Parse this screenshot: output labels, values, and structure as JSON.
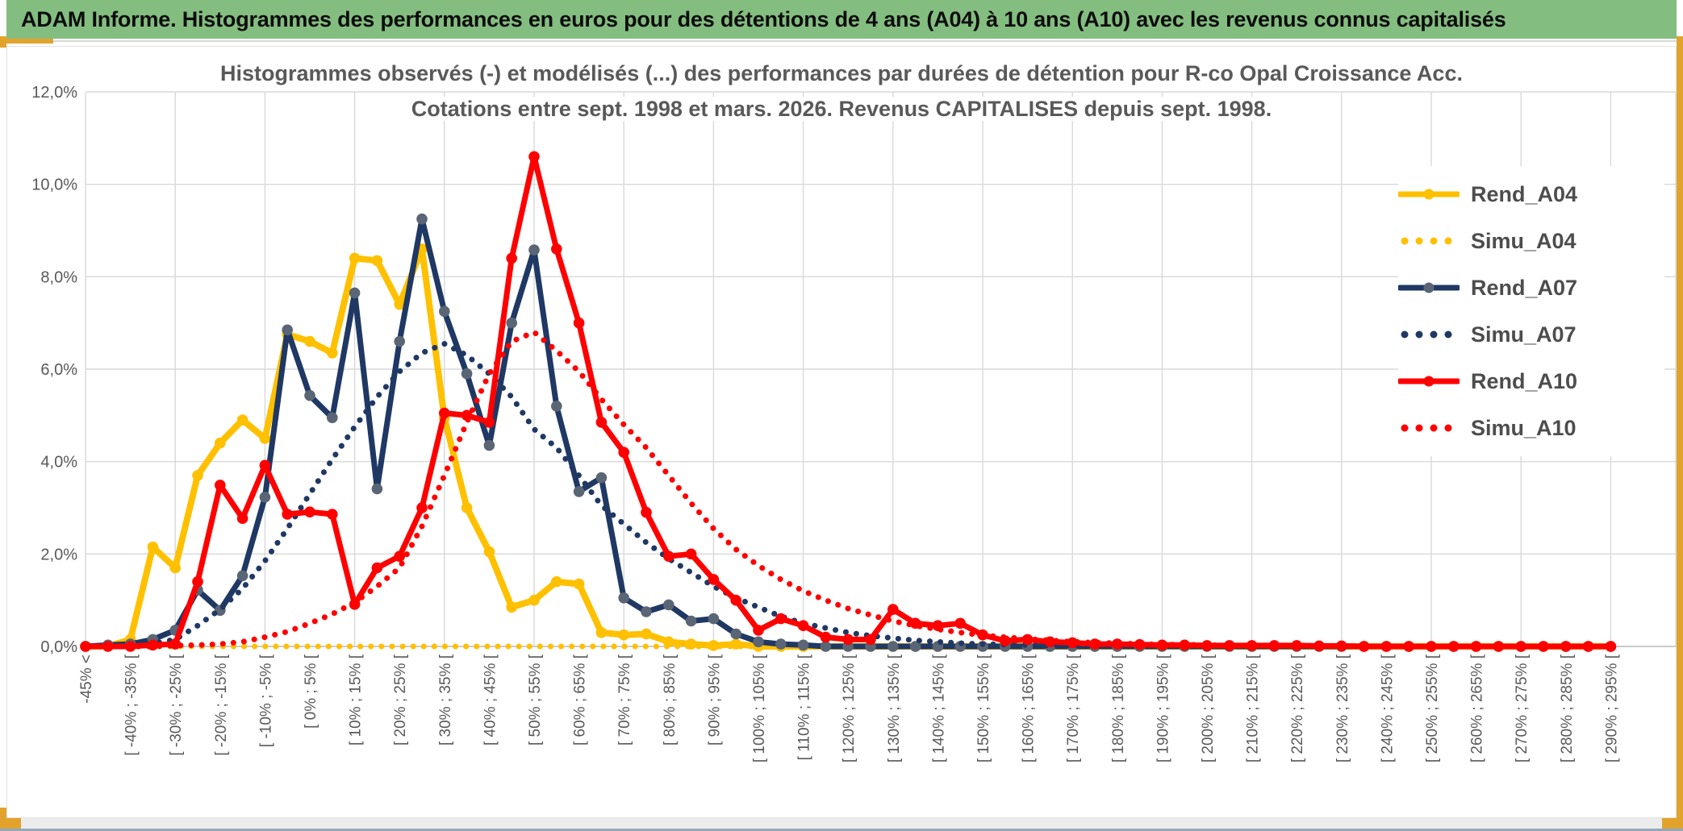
{
  "window": {
    "header_title": "ADAM Informe. Histogrammes des performances en euros pour des détentions de 4 ans (A04) à 10 ans (A10) avec les revenus connus capitalisés",
    "chrome_colors": {
      "header_green": "#84BD80",
      "accent_gold": "#E2A32C",
      "bottom_edge_blue": "#93A9BA"
    }
  },
  "chart_data": {
    "type": "line",
    "title_line1": "Histogrammes observés (-) et modélisés (...) des performances par durées de détention pour R-co Opal Croissance Acc.",
    "title_line2": "Cotations entre sept. 1998 et mars. 2026. Revenus CAPITALISES depuis sept. 1998.",
    "title_color": "#595959",
    "ylim": [
      0,
      12
    ],
    "y_tick_labels": [
      "0,0%",
      "2,0%",
      "4,0%",
      "6,0%",
      "8,0%",
      "10,0%",
      "12,0%"
    ],
    "grid": {
      "visible": true,
      "x_gridline_every_bins": 4,
      "gridline_color": "#D9D9D9"
    },
    "legend_position": "right-overlay",
    "axis_text_color": "#595959",
    "bins": 69,
    "x_labels_every_other_bin": true,
    "x_labels": [
      "-45% <",
      "[ -40% ; -35% [",
      "[ -30% ; -25% [",
      "[ -20% ; -15% [",
      "[ -10% ; -5% [",
      "[ 0% ; 5% [",
      "[ 10% ; 15% [",
      "[ 20% ; 25% [",
      "[ 30% ; 35% [",
      "[ 40% ; 45% [",
      "[ 50% ; 55% [",
      "[ 60% ; 65% [",
      "[ 70% ; 75% [",
      "[ 80% ; 85% [",
      "[ 90% ; 95% [",
      "[ 100% ; 105% [",
      "[ 110% ; 115% [",
      "[ 120% ; 125% [",
      "[ 130% ; 135% [",
      "[ 140% ; 145% [",
      "[ 150% ; 155% [",
      "[ 160% ; 165% [",
      "[ 170% ; 175% [",
      "[ 180% ; 185% [",
      "[ 190% ; 195% [",
      "[ 200% ; 205% [",
      "[ 210% ; 215% [",
      "[ 220% ; 225% [",
      "[ 230% ; 235% [",
      "[ 240% ; 245% [",
      "[ 250% ; 255% [",
      "[ 260% ; 265% [",
      "[ 270% ; 275% [",
      "[ 280% ; 285% [",
      "[ 290% ; 295% ["
    ],
    "series": [
      {
        "name": "Rend_A04",
        "color": "#FFC000",
        "marker_color": "#FFC000",
        "style": "solid",
        "markers": true,
        "width": 8,
        "values": [
          0,
          0,
          0.15,
          2.15,
          1.7,
          3.7,
          4.4,
          4.9,
          4.5,
          6.75,
          6.6,
          6.35,
          8.4,
          8.35,
          7.4,
          8.6,
          4.95,
          3,
          2.05,
          0.85,
          1,
          1.4,
          1.35,
          0.3,
          0.25,
          0.27,
          0.1,
          0.05,
          0.02,
          0.05,
          0,
          0,
          0,
          0,
          0,
          0,
          0,
          0,
          0,
          0,
          0,
          0,
          0,
          0,
          0,
          0,
          0,
          0,
          0,
          0,
          0,
          0,
          0,
          0,
          0,
          0,
          0,
          0,
          0,
          0,
          0,
          0,
          0,
          0,
          0,
          0,
          0,
          0,
          0
        ]
      },
      {
        "name": "Simu_A04",
        "color": "#FFC000",
        "marker_color": "#FFC000",
        "style": "dotted",
        "markers": false,
        "width": 7,
        "values": [
          0,
          0,
          0,
          0,
          0,
          0,
          0,
          0,
          0,
          0,
          0,
          0,
          0,
          0,
          0,
          0,
          0,
          0,
          0,
          0,
          0,
          0,
          0,
          0,
          0,
          0,
          0,
          0,
          0,
          0,
          0,
          0,
          0,
          0,
          0,
          0,
          0,
          0,
          0,
          0,
          0,
          0,
          0,
          0,
          0,
          0,
          0,
          0,
          0,
          0,
          0,
          0,
          0,
          0,
          0,
          0,
          0,
          0,
          0,
          0,
          0,
          0,
          0,
          0,
          0,
          0,
          0,
          0,
          0
        ]
      },
      {
        "name": "Rend_A07",
        "color": "#1F3864",
        "marker_color": "#5A6575",
        "style": "solid",
        "markers": true,
        "width": 7,
        "values": [
          0,
          0.03,
          0.05,
          0.15,
          0.35,
          1.22,
          0.78,
          1.53,
          3.23,
          6.85,
          5.43,
          4.95,
          7.65,
          3.41,
          6.6,
          9.25,
          7.25,
          5.9,
          4.35,
          7,
          8.58,
          5.2,
          3.35,
          3.65,
          1.05,
          0.75,
          0.9,
          0.55,
          0.6,
          0.27,
          0.1,
          0.05,
          0.03,
          0,
          0,
          0,
          0,
          0,
          0,
          0,
          0,
          0,
          0,
          0,
          0,
          0,
          0,
          0,
          0,
          0,
          0,
          0,
          0,
          0,
          0,
          0,
          0,
          0,
          0,
          0,
          0,
          0,
          0,
          0,
          0,
          0,
          0,
          0,
          0
        ]
      },
      {
        "name": "Simu_A07",
        "color": "#1F3864",
        "marker_color": "#1F3864",
        "style": "dotted",
        "markers": false,
        "width": 7,
        "values": [
          0,
          0.01,
          0.02,
          0.06,
          0.15,
          0.45,
          0.8,
          1.25,
          1.85,
          2.55,
          3.3,
          4.05,
          4.75,
          5.4,
          5.95,
          6.35,
          6.55,
          6.3,
          5.9,
          5.4,
          4.7,
          4.3,
          3.7,
          3.05,
          2.65,
          2.25,
          1.9,
          1.6,
          1.3,
          1.05,
          0.85,
          0.65,
          0.5,
          0.4,
          0.3,
          0.23,
          0.18,
          0.13,
          0.1,
          0.07,
          0.05,
          0.04,
          0.03,
          0.02,
          0.02,
          0.01,
          0.01,
          0,
          0,
          0,
          0,
          0,
          0,
          0,
          0,
          0,
          0,
          0,
          0,
          0,
          0,
          0,
          0,
          0,
          0,
          0,
          0,
          0,
          0
        ]
      },
      {
        "name": "Rend_A10",
        "color": "#FF0000",
        "marker_color": "#FF0000",
        "style": "solid",
        "markers": true,
        "width": 7,
        "values": [
          0,
          0,
          0,
          0.03,
          0.05,
          1.4,
          3.49,
          2.77,
          3.92,
          2.86,
          2.91,
          2.86,
          0.91,
          1.7,
          1.95,
          3,
          5.05,
          5,
          4.85,
          8.4,
          10.6,
          8.6,
          7,
          4.85,
          4.2,
          2.9,
          1.95,
          2,
          1.45,
          1,
          0.35,
          0.6,
          0.45,
          0.2,
          0.15,
          0.15,
          0.8,
          0.5,
          0.45,
          0.5,
          0.25,
          0.12,
          0.15,
          0.1,
          0.08,
          0.05,
          0.05,
          0.04,
          0.03,
          0.03,
          0.02,
          0.02,
          0.02,
          0.02,
          0.02,
          0.01,
          0.01,
          0,
          0,
          0,
          0,
          0,
          0,
          0,
          0,
          0,
          0,
          0,
          0
        ]
      },
      {
        "name": "Simu_A10",
        "color": "#FF0000",
        "marker_color": "#FF0000",
        "style": "dotted",
        "markers": false,
        "width": 7,
        "values": [
          0,
          0,
          0,
          0,
          0.02,
          0.03,
          0.05,
          0.1,
          0.2,
          0.32,
          0.5,
          0.7,
          0.95,
          1.3,
          1.7,
          2.6,
          3.7,
          4.85,
          5.9,
          6.6,
          6.8,
          6.4,
          5.95,
          5.35,
          4.8,
          4.3,
          3.7,
          3.1,
          2.55,
          2.1,
          1.75,
          1.45,
          1.2,
          1,
          0.82,
          0.68,
          0.55,
          0.45,
          0.37,
          0.3,
          0.24,
          0.2,
          0.16,
          0.13,
          0.1,
          0.08,
          0.07,
          0.05,
          0.04,
          0.04,
          0.03,
          0.02,
          0.02,
          0.01,
          0.01,
          0.01,
          0,
          0,
          0,
          0,
          0,
          0,
          0,
          0,
          0,
          0,
          0,
          0,
          0
        ]
      }
    ]
  }
}
